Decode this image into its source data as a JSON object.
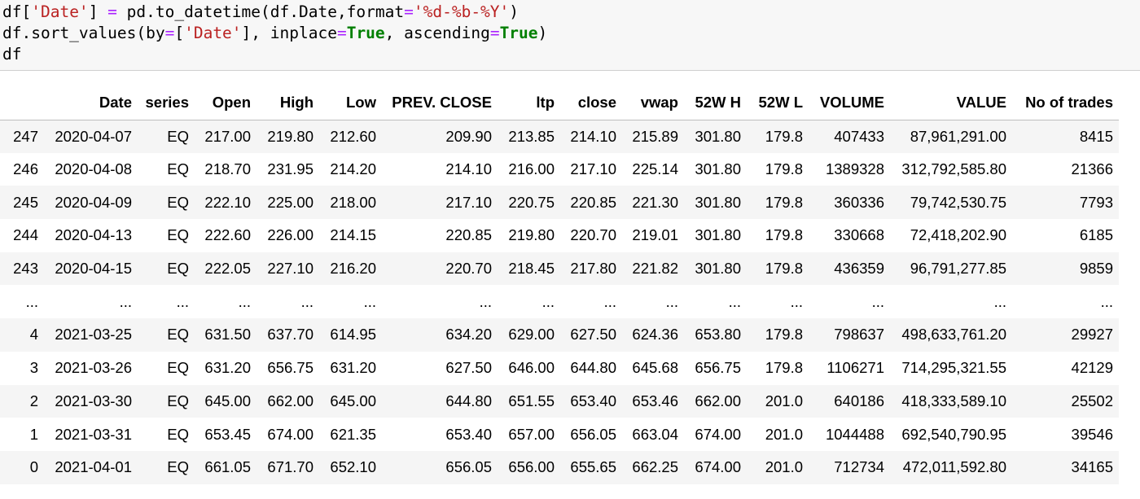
{
  "code": {
    "line1": [
      {
        "t": "df[",
        "c": ""
      },
      {
        "t": "'Date'",
        "c": "tok-str"
      },
      {
        "t": "] ",
        "c": ""
      },
      {
        "t": "=",
        "c": "tok-op"
      },
      {
        "t": " pd.to_datetime(df.Date,format",
        "c": ""
      },
      {
        "t": "=",
        "c": "tok-op"
      },
      {
        "t": "'%d-%b-%Y'",
        "c": "tok-str"
      },
      {
        "t": ")",
        "c": ""
      }
    ],
    "line2": [
      {
        "t": "df.sort_values(by",
        "c": ""
      },
      {
        "t": "=",
        "c": "tok-op"
      },
      {
        "t": "[",
        "c": ""
      },
      {
        "t": "'Date'",
        "c": "tok-str"
      },
      {
        "t": "], inplace",
        "c": ""
      },
      {
        "t": "=",
        "c": "tok-op"
      },
      {
        "t": "True",
        "c": "tok-kw"
      },
      {
        "t": ", ascending",
        "c": ""
      },
      {
        "t": "=",
        "c": "tok-op"
      },
      {
        "t": "True",
        "c": "tok-kw"
      },
      {
        "t": ")",
        "c": ""
      }
    ],
    "line3": [
      {
        "t": "df",
        "c": ""
      }
    ]
  },
  "table": {
    "columns": [
      "",
      "Date",
      "series",
      "Open",
      "High",
      "Low",
      "PREV. CLOSE",
      "ltp",
      "close",
      "vwap",
      "52W H",
      "52W L",
      "VOLUME",
      "VALUE",
      "No of trades"
    ],
    "rows": [
      [
        "247",
        "2020-04-07",
        "EQ",
        "217.00",
        "219.80",
        "212.60",
        "209.90",
        "213.85",
        "214.10",
        "215.89",
        "301.80",
        "179.8",
        "407433",
        "87,961,291.00",
        "8415"
      ],
      [
        "246",
        "2020-04-08",
        "EQ",
        "218.70",
        "231.95",
        "214.20",
        "214.10",
        "216.00",
        "217.10",
        "225.14",
        "301.80",
        "179.8",
        "1389328",
        "312,792,585.80",
        "21366"
      ],
      [
        "245",
        "2020-04-09",
        "EQ",
        "222.10",
        "225.00",
        "218.00",
        "217.10",
        "220.75",
        "220.85",
        "221.30",
        "301.80",
        "179.8",
        "360336",
        "79,742,530.75",
        "7793"
      ],
      [
        "244",
        "2020-04-13",
        "EQ",
        "222.60",
        "226.00",
        "214.15",
        "220.85",
        "219.80",
        "220.70",
        "219.01",
        "301.80",
        "179.8",
        "330668",
        "72,418,202.90",
        "6185"
      ],
      [
        "243",
        "2020-04-15",
        "EQ",
        "222.05",
        "227.10",
        "216.20",
        "220.70",
        "218.45",
        "217.80",
        "221.82",
        "301.80",
        "179.8",
        "436359",
        "96,791,277.85",
        "9859"
      ],
      [
        "...",
        "...",
        "...",
        "...",
        "...",
        "...",
        "...",
        "...",
        "...",
        "...",
        "...",
        "...",
        "...",
        "...",
        "..."
      ],
      [
        "4",
        "2021-03-25",
        "EQ",
        "631.50",
        "637.70",
        "614.95",
        "634.20",
        "629.00",
        "627.50",
        "624.36",
        "653.80",
        "179.8",
        "798637",
        "498,633,761.20",
        "29927"
      ],
      [
        "3",
        "2021-03-26",
        "EQ",
        "631.20",
        "656.75",
        "631.20",
        "627.50",
        "646.00",
        "644.80",
        "645.68",
        "656.75",
        "179.8",
        "1106271",
        "714,295,321.55",
        "42129"
      ],
      [
        "2",
        "2021-03-30",
        "EQ",
        "645.00",
        "662.00",
        "645.00",
        "644.80",
        "651.55",
        "653.40",
        "653.46",
        "662.00",
        "201.0",
        "640186",
        "418,333,589.10",
        "25502"
      ],
      [
        "1",
        "2021-03-31",
        "EQ",
        "653.45",
        "674.00",
        "621.35",
        "653.40",
        "657.00",
        "656.05",
        "663.04",
        "674.00",
        "201.0",
        "1044488",
        "692,540,790.95",
        "39546"
      ],
      [
        "0",
        "2021-04-01",
        "EQ",
        "661.05",
        "671.70",
        "652.10",
        "656.05",
        "656.00",
        "655.65",
        "662.25",
        "674.00",
        "201.0",
        "712734",
        "472,011,592.80",
        "34165"
      ]
    ]
  }
}
